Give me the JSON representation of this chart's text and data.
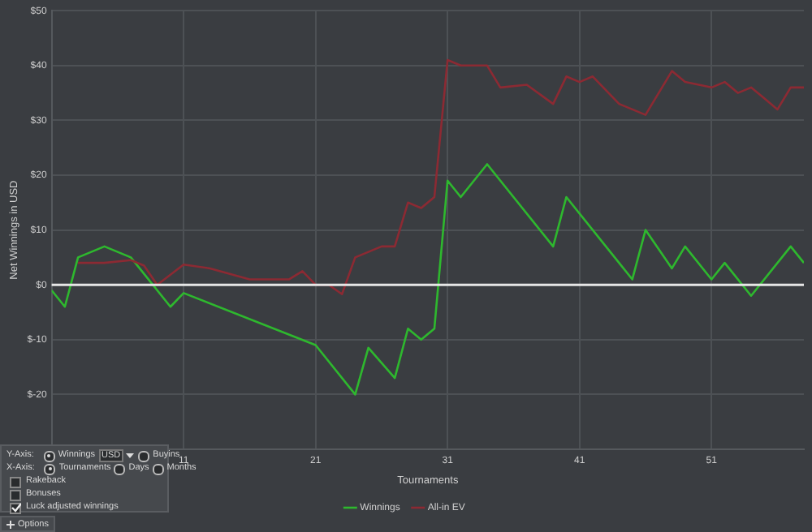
{
  "chart_data": {
    "type": "line",
    "xlabel": "Tournaments",
    "ylabel": "Net Winnings in USD",
    "xlim": [
      1,
      58
    ],
    "xticks": [
      11,
      21,
      31,
      41,
      51
    ],
    "ylim": [
      -30,
      50
    ],
    "yticks": [
      {
        "value": -30,
        "label": null
      },
      {
        "value": -20,
        "label": "$-20"
      },
      {
        "value": -10,
        "label": "$-10"
      },
      {
        "value": 0,
        "label": "$0"
      },
      {
        "value": 10,
        "label": "$10"
      },
      {
        "value": 20,
        "label": "$20"
      },
      {
        "value": 30,
        "label": "$30"
      },
      {
        "value": 40,
        "label": "$40"
      },
      {
        "value": 50,
        "label": "$50"
      }
    ],
    "grid": true,
    "legend": "bottom",
    "marker": "none",
    "line_style": "solid",
    "series": [
      {
        "name": "Winnings",
        "color": "#2eb82e",
        "x": [
          1,
          2,
          3,
          5,
          7,
          10,
          11,
          21,
          24,
          25,
          27,
          28,
          29,
          30,
          31,
          32,
          34,
          39,
          40,
          45,
          46,
          48,
          49,
          51,
          52,
          54,
          57,
          58
        ],
        "values": [
          -1,
          -4,
          5,
          7,
          5,
          -4,
          -1.5,
          -11,
          -20,
          -11.5,
          -17,
          -8,
          -10,
          -8,
          19,
          16,
          22,
          7,
          16,
          1,
          10,
          3,
          7,
          1,
          4,
          -2,
          7,
          4
        ]
      },
      {
        "name": "All-in EV",
        "color": "#8c2a33",
        "x": [
          3,
          5,
          7,
          8,
          9,
          11,
          13,
          16,
          19,
          20,
          21,
          22,
          23,
          24,
          25,
          26,
          27,
          28,
          29,
          30,
          31,
          32,
          34,
          35,
          37,
          39,
          40,
          41,
          42,
          44,
          46,
          48,
          49,
          51,
          52,
          53,
          54,
          55,
          56,
          57,
          58
        ],
        "values": [
          4,
          4,
          4.5,
          3.5,
          0,
          3.7,
          3,
          1,
          1,
          2.5,
          0,
          0,
          -1.7,
          5,
          6,
          7,
          7,
          15,
          14,
          16,
          41,
          40,
          40,
          36,
          36.5,
          33,
          38,
          37,
          38,
          33,
          31,
          39,
          37,
          36,
          37,
          35,
          36,
          34,
          32,
          36,
          36
        ]
      }
    ],
    "ref_lines": [
      {
        "axis": "y",
        "value": 0,
        "color": "#e6e6e6"
      }
    ],
    "annotations": [
      "Y-Axis:",
      "Winnings",
      "USD",
      "Buyins",
      "X-Axis:",
      "Tournaments",
      "Days",
      "Months",
      "Rakeback",
      "Bonuses",
      "Luck adjusted winnings",
      "Options"
    ]
  }
}
